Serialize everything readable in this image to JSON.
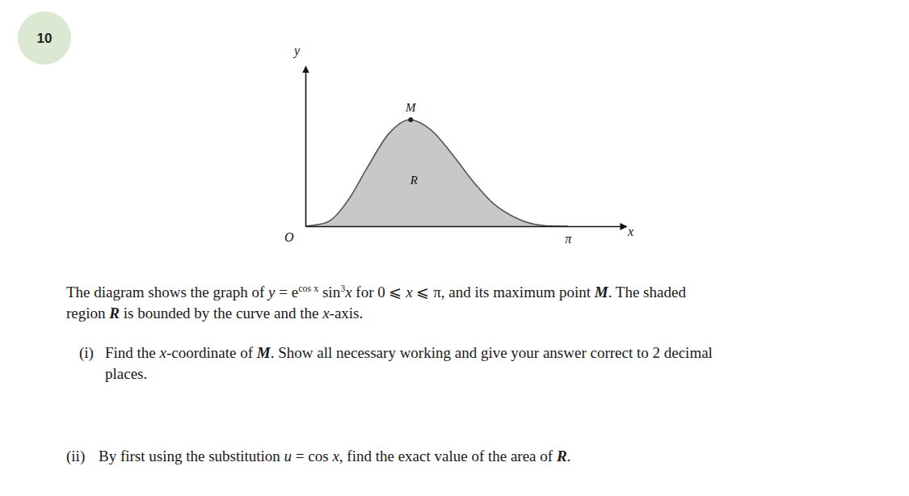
{
  "question_number": "10",
  "chart_data": {
    "type": "area",
    "x": [
      0,
      0.25,
      0.5,
      0.75,
      1.0,
      1.25,
      1.5,
      1.75,
      2.0,
      2.25,
      2.5,
      2.75,
      3.0,
      3.14
    ],
    "values": [
      0,
      0.04,
      0.27,
      0.66,
      1.02,
      1.17,
      1.06,
      0.8,
      0.5,
      0.25,
      0.1,
      0.02,
      0.0,
      0
    ],
    "xlim": [
      0,
      3.84
    ],
    "ylim": [
      0,
      1.76
    ],
    "xticks": [
      {
        "value": 3.14,
        "label": "π"
      }
    ],
    "yticks": [],
    "color": "#c8c8c8",
    "axis_labels": {
      "x": "x",
      "y": "y",
      "origin": "O"
    },
    "annotations": [
      {
        "text": "M",
        "x": 1.26,
        "y": 1.17,
        "marker": "dot"
      },
      {
        "text": "R",
        "x": 1.3,
        "y": 0.46
      }
    ]
  },
  "paragraph": [
    [
      {
        "text": "The diagram shows the graph of ",
        "style": "normal"
      },
      {
        "text": "y",
        "style": "italic"
      },
      {
        "text": " = e",
        "style": "normal"
      },
      {
        "text": "cos x",
        "style": "sup"
      },
      {
        "text": " sin",
        "style": "normal"
      },
      {
        "text": "3",
        "style": "sup"
      },
      {
        "text": "x",
        "style": "italic"
      },
      {
        "text": " for 0 ⩽ ",
        "style": "normal"
      },
      {
        "text": "x",
        "style": "italic"
      },
      {
        "text": " ⩽ π, and its maximum point ",
        "style": "normal"
      },
      {
        "text": "M",
        "style": "bold-italic"
      },
      {
        "text": ". The shaded",
        "style": "normal"
      }
    ],
    [
      {
        "text": "region ",
        "style": "normal"
      },
      {
        "text": "R",
        "style": "bold-italic"
      },
      {
        "text": " is bounded by the curve and the ",
        "style": "normal"
      },
      {
        "text": "x",
        "style": "italic"
      },
      {
        "text": "-axis.",
        "style": "normal"
      }
    ]
  ],
  "parts": [
    {
      "label": "(i)",
      "lines": [
        [
          {
            "text": "Find the ",
            "style": "normal"
          },
          {
            "text": "x",
            "style": "italic"
          },
          {
            "text": "-coordinate of ",
            "style": "normal"
          },
          {
            "text": "M",
            "style": "bold-italic"
          },
          {
            "text": ". Show all necessary working and give your answer correct to 2 decimal",
            "style": "normal"
          }
        ],
        [
          {
            "text": "places.",
            "style": "normal"
          }
        ]
      ]
    },
    {
      "label": "(ii)",
      "lines": [
        [
          {
            "text": "By first using the substitution ",
            "style": "normal"
          },
          {
            "text": "u",
            "style": "italic"
          },
          {
            "text": " = cos ",
            "style": "normal"
          },
          {
            "text": "x",
            "style": "italic"
          },
          {
            "text": ", find the exact value of the area of ",
            "style": "normal"
          },
          {
            "text": "R",
            "style": "bold-italic"
          },
          {
            "text": ".",
            "style": "normal"
          }
        ]
      ]
    }
  ]
}
